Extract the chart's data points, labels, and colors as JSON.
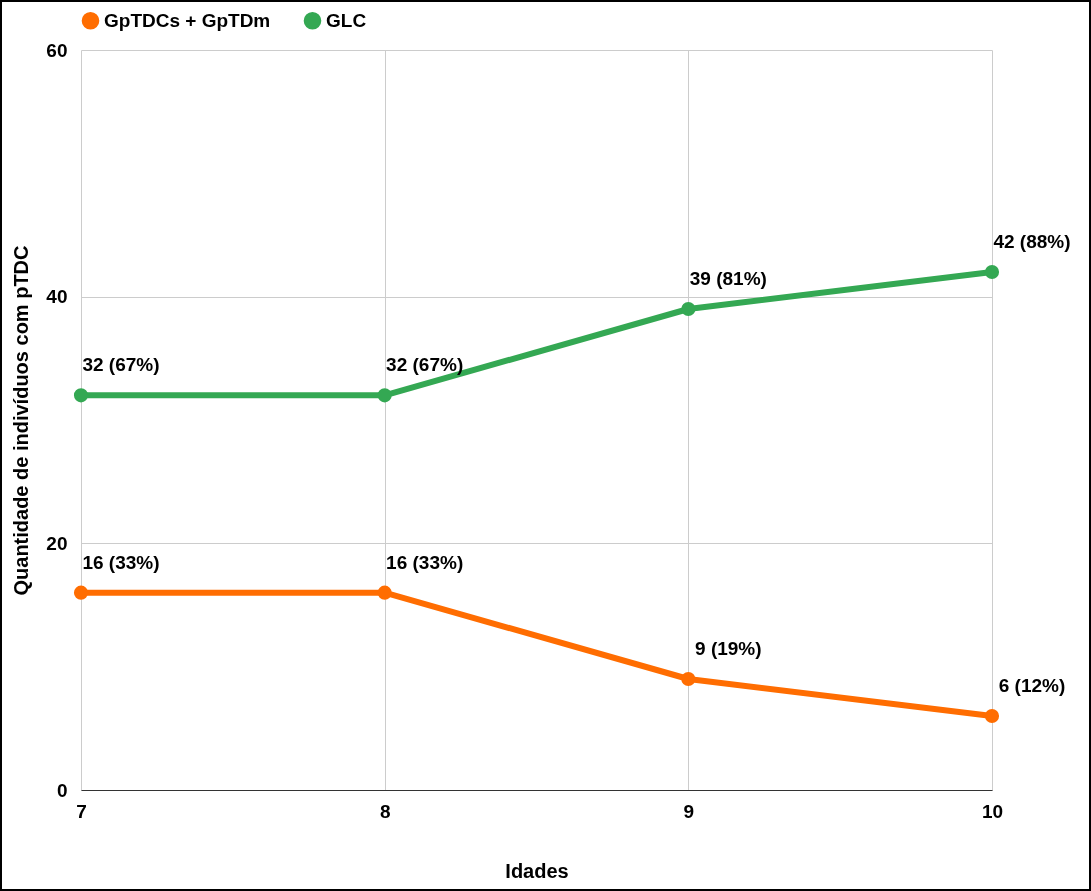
{
  "chart_data": {
    "type": "line",
    "xlabel": "Idades",
    "ylabel": "Quantidade de indivíduos com pTDC",
    "x": [
      7,
      8,
      9,
      10
    ],
    "xlim": [
      7,
      10
    ],
    "xticks": [
      7,
      8,
      9,
      10
    ],
    "ylim": [
      0,
      60
    ],
    "yticks": [
      0,
      20,
      40,
      60
    ],
    "grid": true,
    "legend": "top",
    "marker": "circle",
    "line_style": "solid",
    "series": [
      {
        "name": "GpTDCs + GpTDm",
        "color": "#ff6d01",
        "values": [
          16,
          16,
          9,
          6
        ],
        "value_labels": [
          "16 (33%)",
          "16 (33%)",
          "9 (19%)",
          "6 (12%)"
        ]
      },
      {
        "name": "GLC",
        "color": "#34a853",
        "values": [
          32,
          32,
          39,
          42
        ],
        "value_labels": [
          "32 (67%)",
          "32 (67%)",
          "39 (81%)",
          "42 (88%)"
        ]
      }
    ]
  }
}
